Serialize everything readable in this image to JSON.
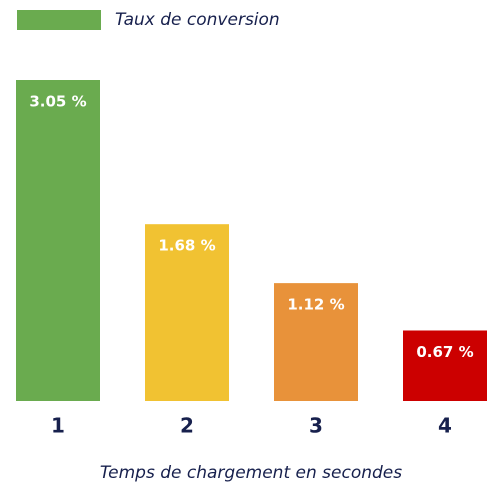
{
  "chart_data": {
    "type": "bar",
    "x_label": "Temps de chargement en secondes",
    "categories": [
      "1",
      "2",
      "3",
      "4"
    ],
    "series": [
      {
        "name": "Taux de conversion",
        "color": "#6aab4f",
        "values": [
          3.05,
          1.68,
          1.12,
          0.67
        ],
        "value_labels": [
          "3.05 %",
          "1.68 %",
          "1.12 %",
          "0.67 %"
        ],
        "colors": [
          "#6aab4f",
          "#f1c232",
          "#e8923a",
          "#cc0000"
        ]
      }
    ]
  }
}
